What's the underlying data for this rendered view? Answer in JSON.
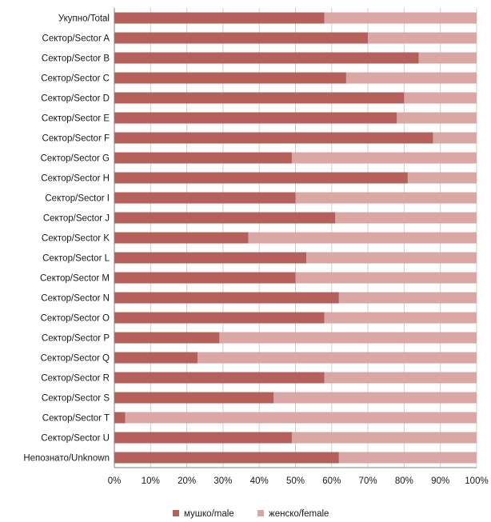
{
  "chart_data": {
    "type": "bar",
    "orientation": "horizontal",
    "stacked": "percent",
    "categories": [
      "Укупно/Total",
      "Сектор/Sector A",
      "Сектор/Sector B",
      "Сектор/Sector C",
      "Сектор/Sector D",
      "Сектор/Sector E",
      "Сектор/Sector F",
      "Сектор/Sector G",
      "Сектор/Sector H",
      "Сектор/Sector I",
      "Сектор/Sector J",
      "Сектор/Sector K",
      "Сектор/Sector L",
      "Сектор/Sector M",
      "Сектор/Sector N",
      "Сектор/Sector O",
      "Сектор/Sector P",
      "Сектор/Sector Q",
      "Сектор/Sector R",
      "Сектор/Sector S",
      "Сектор/Sector T",
      "Сектор/Sector U",
      "Непознато/Unknown"
    ],
    "series": [
      {
        "name": "мушко/male",
        "color": "#b5605b",
        "values": [
          58,
          70,
          84,
          64,
          80,
          78,
          88,
          49,
          81,
          50,
          61,
          37,
          53,
          50,
          62,
          58,
          29,
          23,
          58,
          44,
          3,
          49,
          62
        ]
      },
      {
        "name": "женско/female",
        "color": "#dba7a4",
        "values": [
          42,
          30,
          16,
          36,
          20,
          22,
          12,
          51,
          19,
          50,
          39,
          63,
          47,
          50,
          38,
          42,
          71,
          77,
          42,
          56,
          97,
          51,
          38
        ]
      }
    ],
    "xlim": [
      0,
      100
    ],
    "x_ticks": [
      "0%",
      "10%",
      "20%",
      "30%",
      "40%",
      "50%",
      "60%",
      "70%",
      "80%",
      "90%",
      "100%"
    ],
    "grid": true,
    "legend_position": "bottom"
  }
}
